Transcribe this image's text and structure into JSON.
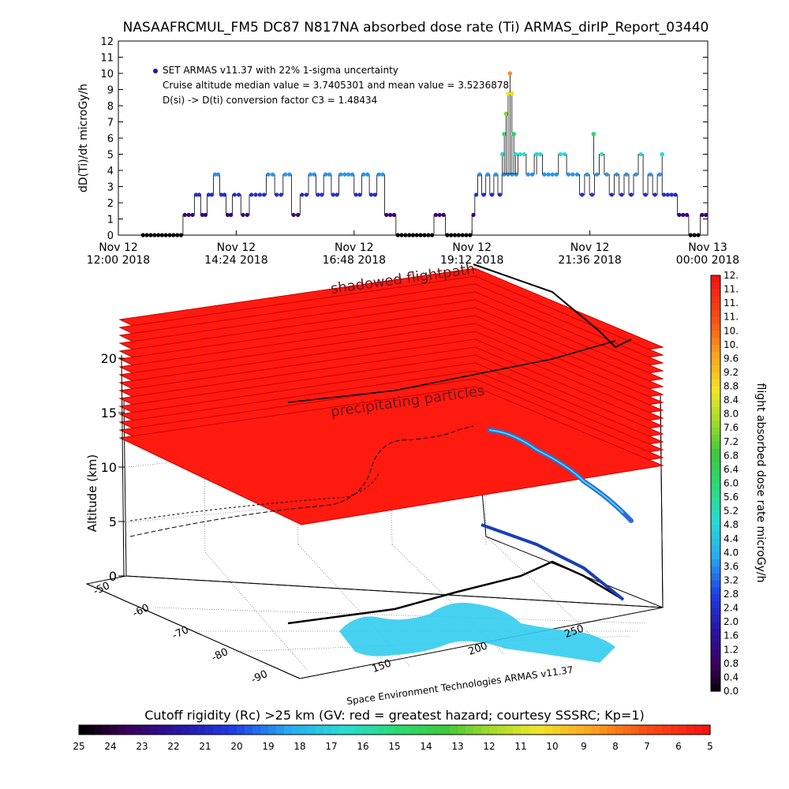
{
  "chart_data": [
    {
      "type": "scatter",
      "title": "NASAAFRCMUL_FM5 DC87 N817NA absorbed dose rate (Ti) ARMAS_dirIP_Report_03440",
      "ylabel": "dD(Ti)/dt microGy/h",
      "ylim": [
        0,
        12
      ],
      "y_ticks": [
        "0",
        "1",
        "2",
        "3",
        "4",
        "5",
        "6",
        "7",
        "8",
        "9",
        "10",
        "11",
        "12"
      ],
      "x_ticks": [
        {
          "line1": "Nov 12",
          "line2": "12:00 2018"
        },
        {
          "line1": "Nov 12",
          "line2": "14:24 2018"
        },
        {
          "line1": "Nov 12",
          "line2": "16:48 2018"
        },
        {
          "line1": "Nov 12",
          "line2": "19:12 2018"
        },
        {
          "line1": "Nov 12",
          "line2": "21:36 2018"
        },
        {
          "line1": "Nov 13",
          "line2": "00:00 2018"
        }
      ],
      "xlim_hours": [
        0,
        12
      ],
      "annotations": [
        "SET ARMAS v11.37 with 22% 1-sigma uncertainty",
        "Cruise altitude median value = 3.7405301 and mean value = 3.5236878",
        "D(si) -> D(ti) conversion factor C3 = 1.48434"
      ],
      "segments": [
        {
          "start": 0.6,
          "end": 1.7,
          "values": [
            0
          ]
        },
        {
          "start": 1.7,
          "end": 2.0,
          "values": [
            1.25
          ]
        },
        {
          "start": 2.0,
          "end": 3.0,
          "values": [
            2.5,
            1.25,
            2.5,
            3.75,
            2.5,
            1.25
          ]
        },
        {
          "start": 3.0,
          "end": 5.0,
          "values": [
            2.5,
            1.25,
            2.5,
            2.5,
            3.75,
            2.5,
            3.75,
            1.25,
            2.5
          ]
        },
        {
          "start": 5.0,
          "end": 7.0,
          "values": [
            3.75,
            2.5,
            3.75,
            2.5,
            3.75,
            3.75,
            2.5,
            3.75,
            2.5,
            3.75
          ]
        },
        {
          "start": 7.0,
          "end": 7.3,
          "values": [
            1.25
          ]
        },
        {
          "start": 7.3,
          "end": 8.3,
          "values": [
            0
          ]
        },
        {
          "start": 8.3,
          "end": 8.6,
          "values": [
            1.25
          ]
        },
        {
          "start": 8.6,
          "end": 9.3,
          "values": [
            0
          ]
        },
        {
          "start": 9.3,
          "end": 9.45,
          "values": [
            1.25,
            2.5
          ]
        },
        {
          "start": 9.45,
          "end": 10.3,
          "values": [
            3.75,
            2.5,
            3.75,
            2.5,
            3.75,
            2.5,
            3.75,
            3.75
          ]
        },
        {
          "start": 10.3,
          "end": 12.0,
          "values": [
            3.75,
            5.0,
            3.75,
            5.0,
            3.75,
            3.75,
            5.0,
            3.75
          ]
        },
        {
          "start": 12.0,
          "end": 13.3,
          "values": [
            3.75,
            2.5,
            3.75,
            2.5,
            3.75,
            5.0,
            3.75,
            2.5,
            3.75,
            2.5
          ]
        },
        {
          "start": 13.3,
          "end": 14.3,
          "values": [
            3.75,
            2.5,
            3.75,
            5.0,
            2.5,
            3.75,
            2.5,
            3.75
          ]
        },
        {
          "start": 14.3,
          "end": 14.7,
          "values": [
            2.5
          ]
        },
        {
          "start": 14.7,
          "end": 15.0,
          "values": [
            1.25
          ]
        },
        {
          "start": 15.0,
          "end": 15.3,
          "values": [
            0
          ]
        },
        {
          "start": 15.3,
          "end": 15.5,
          "values": [
            1.25
          ]
        }
      ],
      "peak_points": [
        {
          "x": 10.1,
          "y": 5.0
        },
        {
          "x": 10.15,
          "y": 6.25
        },
        {
          "x": 10.2,
          "y": 7.5
        },
        {
          "x": 10.25,
          "y": 8.75
        },
        {
          "x": 10.3,
          "y": 10.0
        },
        {
          "x": 10.35,
          "y": 8.75
        },
        {
          "x": 10.4,
          "y": 6.25
        },
        {
          "x": 10.45,
          "y": 5.0
        },
        {
          "x": 11.0,
          "y": 5.0
        },
        {
          "x": 12.5,
          "y": 6.25
        },
        {
          "x": 14.3,
          "y": 5.0
        }
      ]
    },
    {
      "type": "scatter",
      "axis_label_z": "Altitude (km)",
      "z_ticks": [
        "0",
        "5",
        "10",
        "15",
        "20"
      ],
      "lat_ticks": [
        "-50",
        "-60",
        "-70",
        "-80",
        "-90"
      ],
      "lon_ticks": [
        "150",
        "200",
        "250"
      ],
      "labels": [
        "shadowed flightpath",
        "precipitating particles"
      ],
      "credit": "Space Environment Technologies ARMAS v11.37"
    },
    {
      "type": "heatmap",
      "title": "flight absorbed dose rate microGy/h",
      "colorbar_ticks": [
        "0.0",
        "0.4",
        "0.8",
        "1.2",
        "1.6",
        "2.0",
        "2.4",
        "2.8",
        "3.2",
        "3.6",
        "4.0",
        "4.4",
        "4.8",
        "5.2",
        "5.6",
        "6.0",
        "6.4",
        "6.8",
        "7.2",
        "7.6",
        "8.0",
        "8.4",
        "8.8",
        "9.2",
        "9.6",
        "10.",
        "10.",
        "11.",
        "11.",
        "11.",
        "12."
      ],
      "range": [
        0,
        12
      ]
    },
    {
      "type": "heatmap",
      "title": "Cutoff rigidity (Rc) >25 km (GV: red = greatest hazard; courtesy SSSRC; Kp=1)",
      "colorbar_ticks": [
        "25",
        "24",
        "23",
        "22",
        "21",
        "20",
        "19",
        "18",
        "17",
        "16",
        "15",
        "14",
        "13",
        "12",
        "11",
        "10",
        "9",
        "8",
        "7",
        "6",
        "5"
      ],
      "range": [
        25,
        5
      ]
    }
  ]
}
